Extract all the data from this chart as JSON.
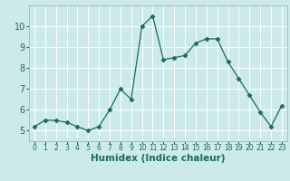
{
  "x": [
    0,
    1,
    2,
    3,
    4,
    5,
    6,
    7,
    8,
    9,
    10,
    11,
    12,
    13,
    14,
    15,
    16,
    17,
    18,
    19,
    20,
    21,
    22,
    23
  ],
  "y": [
    5.2,
    5.5,
    5.5,
    5.4,
    5.2,
    5.0,
    5.2,
    6.0,
    7.0,
    6.5,
    10.0,
    10.5,
    8.4,
    8.5,
    8.6,
    9.2,
    9.4,
    9.4,
    8.3,
    7.5,
    6.7,
    5.9,
    5.2,
    6.2
  ],
  "xlabel": "Humidex (Indice chaleur)",
  "line_color": "#1a6b5a",
  "marker": "D",
  "marker_size": 2.5,
  "bg_color": "#cceaea",
  "grid_color": "#ffffff",
  "xlim": [
    -0.5,
    23.5
  ],
  "ylim": [
    4.5,
    11.0
  ],
  "xticks": [
    0,
    1,
    2,
    3,
    4,
    5,
    6,
    7,
    8,
    9,
    10,
    11,
    12,
    13,
    14,
    15,
    16,
    17,
    18,
    19,
    20,
    21,
    22,
    23
  ],
  "yticks": [
    5,
    6,
    7,
    8,
    9,
    10
  ],
  "xtick_fontsize": 5.5,
  "ytick_fontsize": 7,
  "xlabel_fontsize": 7.5
}
